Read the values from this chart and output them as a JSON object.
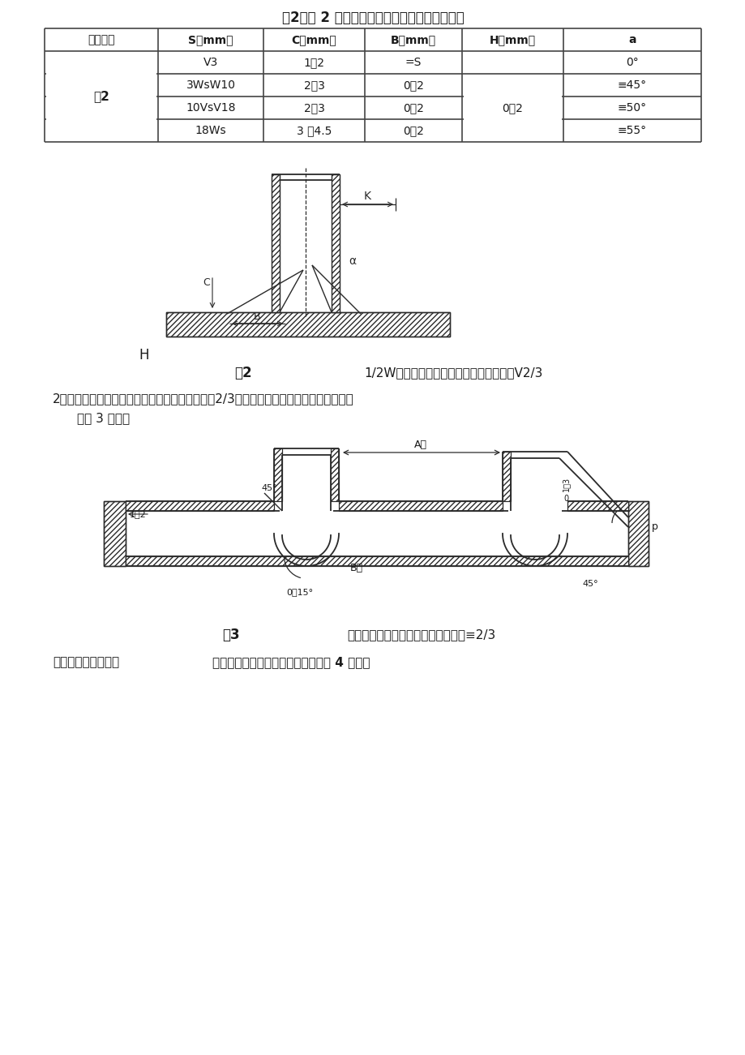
{
  "title": "表2：图 2 形式焊制三通接头加工装配尺寸规格",
  "headers": [
    "接头图示",
    "S（mm）",
    "C（mm）",
    "B（mm）",
    "H（mm）",
    "a"
  ],
  "col1_label": "图2",
  "row_s": [
    "V3",
    "3WsW10",
    "10VsV18",
    "18Ws"
  ],
  "row_c": [
    "1～2",
    "2～3",
    "2～3",
    "3 ～4.5"
  ],
  "row_b": [
    "=S",
    "0～2",
    "0～2",
    "0～2"
  ],
  "row_h_merged": "0～2",
  "row_a": [
    "0°",
    "≡45°",
    "≡50°",
    "≡55°"
  ],
  "fig2_label": "图2",
  "fig2_caption": "1/2W支管内径或开孔直径与主管内径比值V2/3",
  "text2_line1": "2、支管内径或开孔直径与主管内径比值大于等于2/3时，焊制三通接头加工装配尺寸规格",
  "text2_line2": "如图 3 所示。",
  "fig3_label": "图3",
  "fig3_caption": "支管内径或开孔直径与主管内径比值≡2/3",
  "text3_normal": "三、倾斜接管连接的",
  "text3_bold": "焊制三通接头加工装配尺寸规格如图 4 所示。",
  "label_H": "H",
  "label_K": "K",
  "label_C": "C",
  "label_alpha": "α",
  "label_B": "B",
  "label_A_pipe": "A管",
  "label_B_pipe": "B管",
  "label_p": "p",
  "label_45_1": "45°",
  "label_45_2": "45°",
  "label_1_2": "1～2",
  "label_0_15": "0～15°",
  "bg": "#ffffff",
  "lc": "#2a2a2a",
  "table_lc": "#444444"
}
